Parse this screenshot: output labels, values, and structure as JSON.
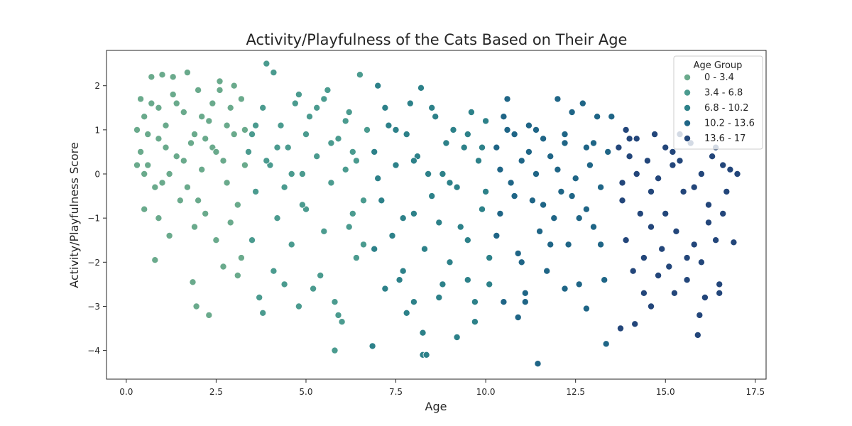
{
  "chart_data": {
    "type": "scatter",
    "title": "Activity/Playfulness of the Cats Based on Their Age",
    "xlabel": "Age",
    "ylabel": "Activity/Playfulness Score",
    "xlim": [
      -0.55,
      17.8
    ],
    "ylim": [
      -4.65,
      2.8
    ],
    "x_ticks": [
      0.0,
      2.5,
      5.0,
      7.5,
      10.0,
      12.5,
      15.0,
      17.5
    ],
    "x_tick_labels": [
      "0.0",
      "2.5",
      "5.0",
      "7.5",
      "10.0",
      "12.5",
      "15.0",
      "17.5"
    ],
    "y_ticks": [
      -4,
      -3,
      -2,
      -1,
      0,
      1,
      2
    ],
    "y_tick_labels": [
      "−4",
      "−3",
      "−2",
      "−1",
      "0",
      "1",
      "2"
    ],
    "grid": false,
    "legend": {
      "title": "Age Group",
      "placement": "top-right",
      "entries": [
        "0 - 3.4",
        "3.4 - 6.8",
        "6.8 - 10.2",
        "10.2 - 13.6",
        "13.6 - 17"
      ]
    },
    "series": [
      {
        "name": "0 - 3.4",
        "color": "#6aaa8c",
        "points": [
          [
            0.3,
            1.0
          ],
          [
            0.4,
            0.5
          ],
          [
            0.5,
            1.3
          ],
          [
            0.6,
            0.2
          ],
          [
            0.7,
            1.6
          ],
          [
            0.8,
            -0.3
          ],
          [
            0.9,
            0.8
          ],
          [
            1.0,
            2.25
          ],
          [
            1.1,
            1.1
          ],
          [
            1.2,
            0.0
          ],
          [
            1.3,
            1.8
          ],
          [
            1.4,
            0.4
          ],
          [
            1.5,
            -0.6
          ],
          [
            1.6,
            1.4
          ],
          [
            1.7,
            2.3
          ],
          [
            1.8,
            0.7
          ],
          [
            1.9,
            -1.2
          ],
          [
            2.0,
            1.9
          ],
          [
            2.1,
            0.1
          ],
          [
            2.2,
            -0.9
          ],
          [
            2.3,
            1.2
          ],
          [
            2.4,
            0.6
          ],
          [
            2.5,
            -1.5
          ],
          [
            2.6,
            2.1
          ],
          [
            2.7,
            0.3
          ],
          [
            2.8,
            -0.2
          ],
          [
            2.9,
            1.5
          ],
          [
            3.0,
            0.9
          ],
          [
            3.1,
            -0.7
          ],
          [
            3.2,
            1.7
          ],
          [
            3.3,
            0.2
          ],
          [
            0.5,
            -0.8
          ],
          [
            0.9,
            -1.0
          ],
          [
            1.2,
            -1.4
          ],
          [
            0.8,
            -1.95
          ],
          [
            1.85,
            -2.45
          ],
          [
            1.95,
            -3.0
          ],
          [
            2.3,
            -3.2
          ],
          [
            2.7,
            -2.1
          ],
          [
            3.1,
            -2.3
          ],
          [
            0.3,
            0.2
          ],
          [
            0.6,
            0.9
          ],
          [
            1.0,
            -0.2
          ],
          [
            1.4,
            1.6
          ],
          [
            1.7,
            -0.3
          ],
          [
            2.1,
            1.3
          ],
          [
            2.5,
            0.5
          ],
          [
            2.9,
            -1.1
          ],
          [
            3.2,
            -1.9
          ],
          [
            0.7,
            2.2
          ],
          [
            1.3,
            2.2
          ],
          [
            2.6,
            1.9
          ],
          [
            3.0,
            2.0
          ],
          [
            0.4,
            1.7
          ],
          [
            1.1,
            0.6
          ],
          [
            2.0,
            -0.6
          ],
          [
            2.2,
            0.8
          ],
          [
            2.8,
            1.1
          ],
          [
            0.5,
            0.0
          ],
          [
            1.6,
            0.3
          ],
          [
            3.3,
            1.0
          ],
          [
            1.9,
            0.9
          ],
          [
            2.4,
            1.6
          ],
          [
            0.9,
            1.5
          ]
        ]
      },
      {
        "name": "3.4 - 6.8",
        "color": "#4b9b8f",
        "points": [
          [
            3.5,
            0.9
          ],
          [
            3.6,
            -0.4
          ],
          [
            3.8,
            1.5
          ],
          [
            3.9,
            2.5
          ],
          [
            4.0,
            0.2
          ],
          [
            4.2,
            -1.0
          ],
          [
            4.3,
            1.1
          ],
          [
            4.5,
            0.6
          ],
          [
            4.6,
            -1.6
          ],
          [
            4.8,
            1.8
          ],
          [
            4.9,
            0.0
          ],
          [
            5.0,
            -0.8
          ],
          [
            5.1,
            1.3
          ],
          [
            5.3,
            0.4
          ],
          [
            5.4,
            -2.3
          ],
          [
            5.5,
            1.7
          ],
          [
            5.7,
            -0.2
          ],
          [
            5.8,
            -2.9
          ],
          [
            5.9,
            0.8
          ],
          [
            6.0,
            -3.35
          ],
          [
            6.1,
            1.2
          ],
          [
            6.2,
            -1.2
          ],
          [
            6.3,
            0.5
          ],
          [
            6.5,
            2.25
          ],
          [
            6.6,
            -0.6
          ],
          [
            6.7,
            1.0
          ],
          [
            3.7,
            -2.8
          ],
          [
            4.1,
            -2.2
          ],
          [
            4.4,
            -2.5
          ],
          [
            4.8,
            -3.0
          ],
          [
            5.2,
            -2.6
          ],
          [
            5.8,
            -4.0
          ],
          [
            5.9,
            -3.2
          ],
          [
            6.0,
            -3.35
          ],
          [
            6.4,
            -1.9
          ],
          [
            3.8,
            -3.15
          ],
          [
            4.1,
            2.3
          ],
          [
            4.7,
            1.6
          ],
          [
            5.6,
            1.9
          ],
          [
            6.2,
            1.4
          ],
          [
            3.5,
            -1.5
          ],
          [
            3.9,
            0.3
          ],
          [
            4.4,
            -0.3
          ],
          [
            5.0,
            0.9
          ],
          [
            5.5,
            -1.3
          ],
          [
            6.1,
            0.1
          ],
          [
            6.6,
            -1.6
          ],
          [
            4.2,
            0.6
          ],
          [
            4.9,
            -0.7
          ],
          [
            5.3,
            1.5
          ],
          [
            6.3,
            -0.9
          ],
          [
            3.6,
            1.1
          ],
          [
            4.6,
            0.0
          ],
          [
            5.7,
            0.7
          ],
          [
            6.4,
            0.3
          ],
          [
            3.4,
            0.5
          ]
        ]
      },
      {
        "name": "6.8 - 10.2",
        "color": "#2d8189",
        "points": [
          [
            6.9,
            0.5
          ],
          [
            7.0,
            2.0
          ],
          [
            7.1,
            -0.6
          ],
          [
            7.3,
            1.1
          ],
          [
            7.4,
            -1.4
          ],
          [
            7.5,
            0.2
          ],
          [
            7.7,
            -2.2
          ],
          [
            7.8,
            0.9
          ],
          [
            7.9,
            1.6
          ],
          [
            8.0,
            -0.9
          ],
          [
            8.1,
            0.4
          ],
          [
            8.2,
            1.95
          ],
          [
            8.3,
            -1.7
          ],
          [
            8.4,
            0.0
          ],
          [
            8.5,
            -0.5
          ],
          [
            8.6,
            1.3
          ],
          [
            8.7,
            -1.1
          ],
          [
            8.9,
            0.7
          ],
          [
            9.0,
            -2.0
          ],
          [
            9.1,
            1.0
          ],
          [
            9.2,
            -0.3
          ],
          [
            9.4,
            0.6
          ],
          [
            9.5,
            -1.5
          ],
          [
            9.6,
            1.4
          ],
          [
            9.7,
            -2.9
          ],
          [
            9.8,
            0.3
          ],
          [
            9.9,
            -0.8
          ],
          [
            10.0,
            1.2
          ],
          [
            10.1,
            -1.9
          ],
          [
            6.85,
            -3.9
          ],
          [
            7.8,
            -3.15
          ],
          [
            8.0,
            -2.9
          ],
          [
            8.25,
            -3.6
          ],
          [
            8.25,
            -4.1
          ],
          [
            8.35,
            -4.1
          ],
          [
            8.7,
            -2.8
          ],
          [
            9.2,
            -3.7
          ],
          [
            9.7,
            -3.35
          ],
          [
            7.2,
            -2.6
          ],
          [
            7.6,
            -2.4
          ],
          [
            8.8,
            -2.5
          ],
          [
            9.5,
            -2.4
          ],
          [
            10.1,
            -2.5
          ],
          [
            7.0,
            -0.1
          ],
          [
            7.5,
            1.0
          ],
          [
            8.0,
            0.3
          ],
          [
            8.5,
            1.5
          ],
          [
            9.0,
            -0.2
          ],
          [
            9.5,
            0.9
          ],
          [
            10.0,
            -0.4
          ],
          [
            7.2,
            1.5
          ],
          [
            7.7,
            -1.0
          ],
          [
            8.8,
            0.0
          ],
          [
            9.3,
            -1.2
          ],
          [
            9.9,
            0.6
          ],
          [
            6.9,
            -1.7
          ]
        ]
      },
      {
        "name": "10.2 - 13.6",
        "color": "#1f6586",
        "points": [
          [
            10.3,
            0.6
          ],
          [
            10.4,
            -0.9
          ],
          [
            10.5,
            1.3
          ],
          [
            10.6,
            1.7
          ],
          [
            10.7,
            -0.2
          ],
          [
            10.8,
            0.9
          ],
          [
            10.9,
            -1.8
          ],
          [
            11.0,
            0.3
          ],
          [
            11.1,
            -2.9
          ],
          [
            11.2,
            1.1
          ],
          [
            11.3,
            -0.6
          ],
          [
            11.4,
            0.0
          ],
          [
            11.5,
            -1.3
          ],
          [
            11.6,
            0.8
          ],
          [
            11.7,
            -2.2
          ],
          [
            11.8,
            0.4
          ],
          [
            11.9,
            -1.0
          ],
          [
            12.0,
            1.7
          ],
          [
            12.1,
            -0.4
          ],
          [
            12.2,
            0.7
          ],
          [
            12.3,
            -1.6
          ],
          [
            12.4,
            1.4
          ],
          [
            12.5,
            -0.1
          ],
          [
            12.6,
            -2.5
          ],
          [
            12.7,
            1.6
          ],
          [
            12.8,
            -0.8
          ],
          [
            12.9,
            0.2
          ],
          [
            13.0,
            -1.2
          ],
          [
            13.1,
            1.3
          ],
          [
            13.2,
            -0.3
          ],
          [
            13.3,
            -2.4
          ],
          [
            13.4,
            0.5
          ],
          [
            10.5,
            -2.9
          ],
          [
            10.9,
            -3.25
          ],
          [
            11.1,
            -2.7
          ],
          [
            11.45,
            -4.3
          ],
          [
            12.2,
            -2.6
          ],
          [
            12.8,
            -3.05
          ],
          [
            13.35,
            -3.85
          ],
          [
            11.0,
            -2.0
          ],
          [
            10.4,
            0.1
          ],
          [
            10.8,
            -0.5
          ],
          [
            11.2,
            0.5
          ],
          [
            11.6,
            -0.7
          ],
          [
            12.0,
            0.1
          ],
          [
            12.4,
            -0.5
          ],
          [
            12.8,
            0.6
          ],
          [
            13.2,
            -1.6
          ],
          [
            10.6,
            1.0
          ],
          [
            11.4,
            1.0
          ],
          [
            12.2,
            0.9
          ],
          [
            13.0,
            0.7
          ],
          [
            10.3,
            -1.4
          ],
          [
            11.8,
            -1.6
          ],
          [
            12.6,
            -1.0
          ],
          [
            13.5,
            1.3
          ]
        ]
      },
      {
        "name": "13.6 - 17",
        "color": "#23467a",
        "points": [
          [
            13.7,
            0.6
          ],
          [
            13.8,
            -0.6
          ],
          [
            13.9,
            -1.5
          ],
          [
            14.0,
            0.4
          ],
          [
            14.1,
            -2.2
          ],
          [
            14.2,
            0.8
          ],
          [
            14.3,
            -0.9
          ],
          [
            14.4,
            -2.7
          ],
          [
            14.5,
            0.3
          ],
          [
            14.6,
            -1.2
          ],
          [
            14.7,
            0.9
          ],
          [
            14.8,
            -0.1
          ],
          [
            14.9,
            -1.7
          ],
          [
            15.0,
            0.6
          ],
          [
            15.1,
            -2.1
          ],
          [
            15.2,
            0.2
          ],
          [
            15.3,
            -1.3
          ],
          [
            15.4,
            0.9
          ],
          [
            15.5,
            -0.4
          ],
          [
            15.6,
            -2.4
          ],
          [
            15.7,
            0.7
          ],
          [
            15.8,
            -1.6
          ],
          [
            15.9,
            -3.65
          ],
          [
            16.0,
            0.0
          ],
          [
            16.1,
            -2.8
          ],
          [
            16.2,
            -0.7
          ],
          [
            16.3,
            0.4
          ],
          [
            16.4,
            -1.5
          ],
          [
            16.5,
            -2.5
          ],
          [
            16.6,
            0.2
          ],
          [
            16.7,
            -0.4
          ],
          [
            16.8,
            0.1
          ],
          [
            16.9,
            -1.55
          ],
          [
            17.0,
            0.0
          ],
          [
            13.75,
            -3.5
          ],
          [
            14.15,
            -3.4
          ],
          [
            14.6,
            -3.0
          ],
          [
            15.25,
            -2.7
          ],
          [
            15.95,
            -3.2
          ],
          [
            16.5,
            -2.7
          ],
          [
            13.8,
            -0.2
          ],
          [
            14.2,
            0.0
          ],
          [
            14.6,
            -0.4
          ],
          [
            15.0,
            -0.9
          ],
          [
            15.4,
            0.3
          ],
          [
            15.8,
            -0.3
          ],
          [
            16.2,
            -1.1
          ],
          [
            16.6,
            -0.9
          ],
          [
            14.0,
            0.8
          ],
          [
            15.2,
            0.5
          ],
          [
            16.4,
            0.6
          ],
          [
            14.4,
            -1.9
          ],
          [
            15.6,
            -1.9
          ],
          [
            16.0,
            -2.0
          ],
          [
            14.8,
            -2.3
          ],
          [
            13.9,
            1.0
          ]
        ]
      }
    ]
  }
}
